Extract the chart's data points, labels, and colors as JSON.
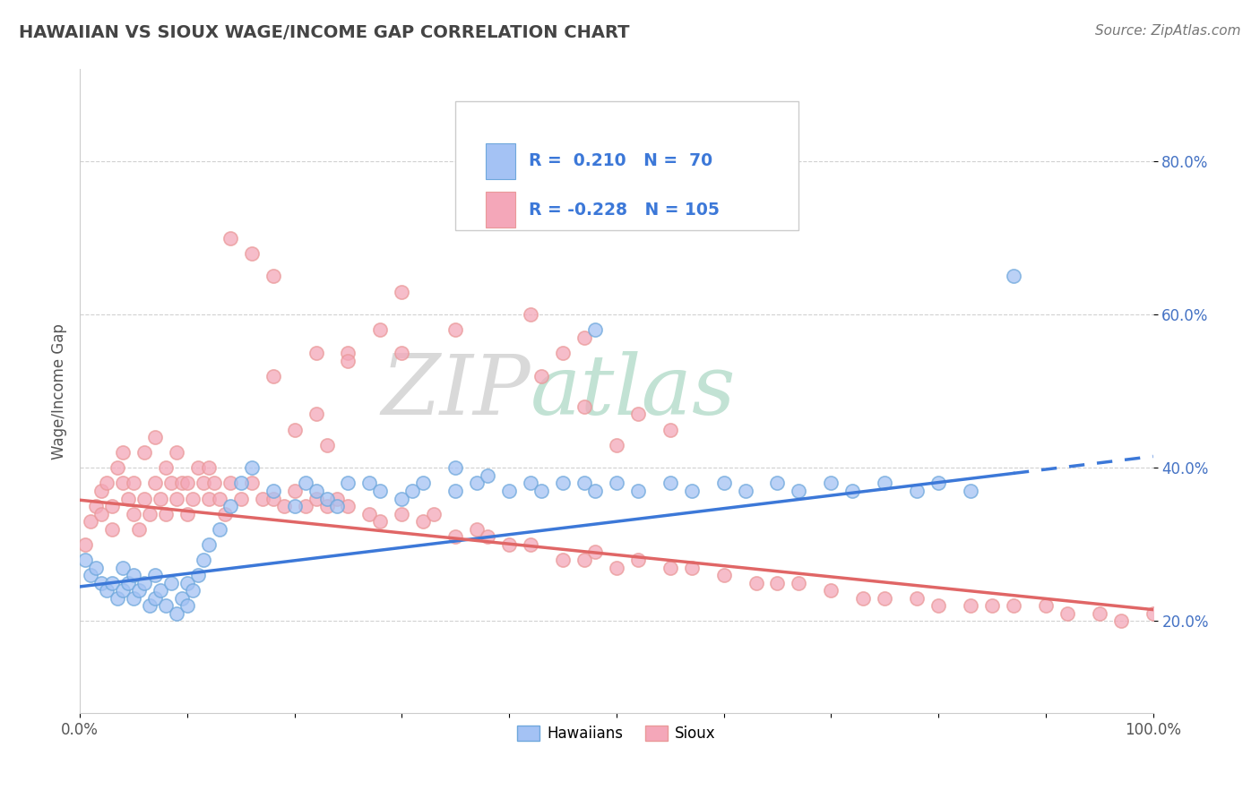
{
  "title": "HAWAIIAN VS SIOUX WAGE/INCOME GAP CORRELATION CHART",
  "source_text": "Source: ZipAtlas.com",
  "ylabel": "Wage/Income Gap",
  "xlim": [
    0.0,
    1.0
  ],
  "ylim": [
    0.08,
    0.92
  ],
  "xticks": [
    0.0,
    0.1,
    0.2,
    0.3,
    0.4,
    0.5,
    0.6,
    0.7,
    0.8,
    0.9,
    1.0
  ],
  "xticklabels": [
    "0.0%",
    "",
    "",
    "",
    "",
    "",
    "",
    "",
    "",
    "",
    "100.0%"
  ],
  "yticks_right": [
    0.2,
    0.4,
    0.6,
    0.8
  ],
  "ytick_right_labels": [
    "20.0%",
    "40.0%",
    "60.0%",
    "80.0%"
  ],
  "hawaiian_color": "#a4c2f4",
  "sioux_color": "#f4a7b9",
  "hawaiian_edge_color": "#6fa8dc",
  "sioux_edge_color": "#ea9999",
  "hawaiian_line_color": "#3c78d8",
  "sioux_line_color": "#e06666",
  "legend_r_hawaiian": "0.210",
  "legend_n_hawaiian": "70",
  "legend_r_sioux": "-0.228",
  "legend_n_sioux": "105",
  "watermark_zip": "ZIP",
  "watermark_atlas": "atlas",
  "background_color": "#ffffff",
  "grid_color": "#cccccc",
  "hawaiian_scatter_x": [
    0.005,
    0.01,
    0.015,
    0.02,
    0.025,
    0.03,
    0.035,
    0.04,
    0.04,
    0.045,
    0.05,
    0.05,
    0.055,
    0.06,
    0.065,
    0.07,
    0.07,
    0.075,
    0.08,
    0.085,
    0.09,
    0.095,
    0.1,
    0.1,
    0.105,
    0.11,
    0.115,
    0.12,
    0.13,
    0.14,
    0.15,
    0.16,
    0.18,
    0.2,
    0.21,
    0.22,
    0.23,
    0.24,
    0.25,
    0.27,
    0.28,
    0.3,
    0.31,
    0.32,
    0.35,
    0.35,
    0.37,
    0.38,
    0.4,
    0.42,
    0.43,
    0.45,
    0.47,
    0.48,
    0.5,
    0.52,
    0.55,
    0.57,
    0.6,
    0.62,
    0.65,
    0.67,
    0.7,
    0.72,
    0.75,
    0.78,
    0.8,
    0.83,
    0.87,
    0.48
  ],
  "hawaiian_scatter_y": [
    0.28,
    0.26,
    0.27,
    0.25,
    0.24,
    0.25,
    0.23,
    0.24,
    0.27,
    0.25,
    0.23,
    0.26,
    0.24,
    0.25,
    0.22,
    0.23,
    0.26,
    0.24,
    0.22,
    0.25,
    0.21,
    0.23,
    0.22,
    0.25,
    0.24,
    0.26,
    0.28,
    0.3,
    0.32,
    0.35,
    0.38,
    0.4,
    0.37,
    0.35,
    0.38,
    0.37,
    0.36,
    0.35,
    0.38,
    0.38,
    0.37,
    0.36,
    0.37,
    0.38,
    0.37,
    0.4,
    0.38,
    0.39,
    0.37,
    0.38,
    0.37,
    0.38,
    0.38,
    0.37,
    0.38,
    0.37,
    0.38,
    0.37,
    0.38,
    0.37,
    0.38,
    0.37,
    0.38,
    0.37,
    0.38,
    0.37,
    0.38,
    0.37,
    0.65,
    0.58
  ],
  "sioux_scatter_x": [
    0.005,
    0.01,
    0.015,
    0.02,
    0.02,
    0.025,
    0.03,
    0.03,
    0.035,
    0.04,
    0.04,
    0.045,
    0.05,
    0.05,
    0.055,
    0.06,
    0.06,
    0.065,
    0.07,
    0.07,
    0.075,
    0.08,
    0.08,
    0.085,
    0.09,
    0.09,
    0.095,
    0.1,
    0.1,
    0.105,
    0.11,
    0.115,
    0.12,
    0.12,
    0.125,
    0.13,
    0.135,
    0.14,
    0.15,
    0.16,
    0.17,
    0.18,
    0.19,
    0.2,
    0.21,
    0.22,
    0.23,
    0.24,
    0.25,
    0.27,
    0.28,
    0.3,
    0.32,
    0.33,
    0.35,
    0.37,
    0.38,
    0.4,
    0.42,
    0.45,
    0.47,
    0.48,
    0.5,
    0.52,
    0.55,
    0.57,
    0.6,
    0.63,
    0.65,
    0.67,
    0.7,
    0.73,
    0.75,
    0.78,
    0.8,
    0.83,
    0.85,
    0.87,
    0.9,
    0.92,
    0.95,
    0.97,
    1.0,
    0.2,
    0.22,
    0.14,
    0.16,
    0.18,
    0.23,
    0.25,
    0.28,
    0.3,
    0.18,
    0.22,
    0.25,
    0.3,
    0.35,
    0.5,
    0.52,
    0.55,
    0.43,
    0.45,
    0.47,
    0.42,
    0.47
  ],
  "sioux_scatter_y": [
    0.3,
    0.33,
    0.35,
    0.37,
    0.34,
    0.38,
    0.35,
    0.32,
    0.4,
    0.38,
    0.42,
    0.36,
    0.34,
    0.38,
    0.32,
    0.36,
    0.42,
    0.34,
    0.38,
    0.44,
    0.36,
    0.34,
    0.4,
    0.38,
    0.36,
    0.42,
    0.38,
    0.34,
    0.38,
    0.36,
    0.4,
    0.38,
    0.36,
    0.4,
    0.38,
    0.36,
    0.34,
    0.38,
    0.36,
    0.38,
    0.36,
    0.36,
    0.35,
    0.37,
    0.35,
    0.36,
    0.35,
    0.36,
    0.35,
    0.34,
    0.33,
    0.34,
    0.33,
    0.34,
    0.31,
    0.32,
    0.31,
    0.3,
    0.3,
    0.28,
    0.28,
    0.29,
    0.27,
    0.28,
    0.27,
    0.27,
    0.26,
    0.25,
    0.25,
    0.25,
    0.24,
    0.23,
    0.23,
    0.23,
    0.22,
    0.22,
    0.22,
    0.22,
    0.22,
    0.21,
    0.21,
    0.2,
    0.21,
    0.45,
    0.47,
    0.7,
    0.68,
    0.65,
    0.43,
    0.55,
    0.58,
    0.55,
    0.52,
    0.55,
    0.54,
    0.63,
    0.58,
    0.43,
    0.47,
    0.45,
    0.52,
    0.55,
    0.57,
    0.6,
    0.48
  ]
}
